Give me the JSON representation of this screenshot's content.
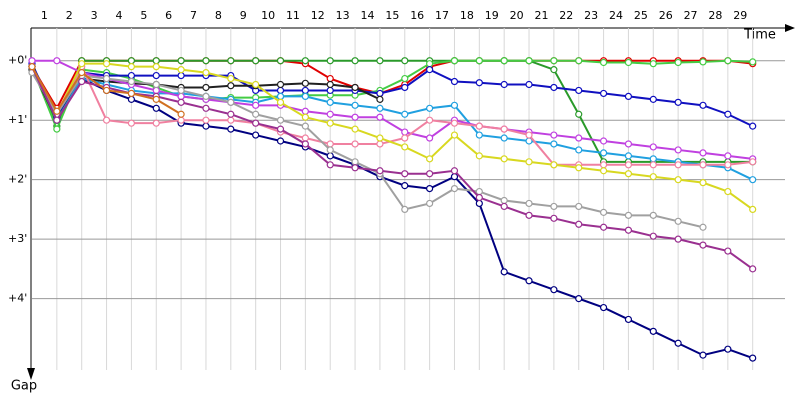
{
  "chart_data": {
    "type": "line",
    "x_label": "Time",
    "y_label": "Gap",
    "x": [
      0,
      1,
      2,
      3,
      4,
      5,
      6,
      7,
      8,
      9,
      10,
      11,
      12,
      13,
      14,
      15,
      16,
      17,
      18,
      19,
      20,
      21,
      22,
      23,
      24,
      25,
      26,
      27,
      28,
      29
    ],
    "xlim": [
      0,
      30.3
    ],
    "ylim": [
      -0.55,
      5.2
    ],
    "inverted_y": true,
    "grid": true,
    "xticks": [
      1,
      2,
      3,
      4,
      5,
      6,
      7,
      8,
      9,
      10,
      11,
      12,
      13,
      14,
      15,
      16,
      17,
      18,
      19,
      20,
      21,
      22,
      23,
      24,
      25,
      26,
      27,
      28,
      29
    ],
    "yticks": [
      {
        "value": 0,
        "label": "+0'"
      },
      {
        "value": 1,
        "label": "+1'"
      },
      {
        "value": 2,
        "label": "+2'"
      },
      {
        "value": 3,
        "label": "+3'"
      },
      {
        "value": 4,
        "label": "+4'"
      }
    ],
    "series": [
      {
        "color": "#e00000",
        "values": [
          0.1,
          0.8,
          0,
          0,
          0,
          0,
          0,
          0,
          0,
          0,
          0,
          0.05,
          0.3,
          0.45,
          0.55,
          0.4,
          0.1,
          0,
          0,
          0,
          0,
          0,
          0,
          0,
          0,
          0,
          0,
          0,
          0,
          0.05
        ]
      },
      {
        "color": "#2a9a2a",
        "values": [
          0.1,
          1.1,
          0,
          0,
          0,
          0,
          0,
          0,
          0,
          0,
          0,
          0,
          0,
          0,
          0,
          0,
          0,
          0,
          0,
          0,
          0,
          0.15,
          0.9,
          1.7,
          1.7,
          1.7,
          1.7,
          1.7,
          1.7,
          1.7
        ]
      },
      {
        "color": "#44cc44",
        "values": [
          0.1,
          1.15,
          0.15,
          0.2,
          0.3,
          0.45,
          0.6,
          0.65,
          0.62,
          0.62,
          0.6,
          0.58,
          0.58,
          0.58,
          0.5,
          0.3,
          0.05,
          0,
          0,
          0,
          0,
          0,
          0,
          0.03,
          0.03,
          0.05,
          0.03,
          0.02,
          0,
          0.02
        ]
      },
      {
        "color": "#1010c0",
        "values": [
          0.05,
          0.95,
          0.2,
          0.25,
          0.25,
          0.25,
          0.25,
          0.25,
          0.25,
          0.5,
          0.5,
          0.5,
          0.5,
          0.5,
          0.55,
          0.45,
          0.15,
          0.35,
          0.37,
          0.4,
          0.4,
          0.45,
          0.5,
          0.55,
          0.6,
          0.65,
          0.7,
          0.75,
          0.9,
          1.1
        ]
      },
      {
        "color": "#000080",
        "values": [
          0.1,
          0.9,
          0.3,
          0.5,
          0.65,
          0.8,
          1.05,
          1.1,
          1.15,
          1.25,
          1.35,
          1.45,
          1.6,
          1.75,
          1.95,
          2.1,
          2.15,
          1.95,
          2.4,
          3.55,
          3.7,
          3.85,
          4.0,
          4.15,
          4.35,
          4.55,
          4.75,
          4.95,
          4.85,
          5.0
        ]
      },
      {
        "color": "#202020",
        "values": [
          0.15,
          1.0,
          0.3,
          0.35,
          0.38,
          0.4,
          0.45,
          0.45,
          0.42,
          0.42,
          0.4,
          0.38,
          0.4,
          0.45,
          0.65,
          null,
          null,
          null,
          null,
          null,
          null,
          null,
          null,
          null,
          null,
          null,
          null,
          null,
          null,
          null
        ]
      },
      {
        "color": "#20a0e0",
        "values": [
          0.1,
          1.0,
          0.3,
          0.4,
          0.5,
          0.55,
          0.55,
          0.6,
          0.65,
          0.7,
          0.6,
          0.6,
          0.7,
          0.75,
          0.8,
          0.9,
          0.8,
          0.75,
          1.25,
          1.3,
          1.35,
          1.4,
          1.5,
          1.55,
          1.6,
          1.65,
          1.7,
          1.75,
          1.8,
          2.0
        ]
      },
      {
        "color": "#c040e0",
        "values": [
          0,
          0,
          0.2,
          0.3,
          0.4,
          0.5,
          0.6,
          0.65,
          0.7,
          0.75,
          0.75,
          0.85,
          0.9,
          0.95,
          0.95,
          1.2,
          1.3,
          1.0,
          1.1,
          1.15,
          1.2,
          1.25,
          1.3,
          1.35,
          1.4,
          1.45,
          1.5,
          1.55,
          1.6,
          1.65
        ]
      },
      {
        "color": "#f080a0",
        "values": [
          0.1,
          0.9,
          0.1,
          1.0,
          1.05,
          1.05,
          1.0,
          1.0,
          1.0,
          1.05,
          1.2,
          1.3,
          1.4,
          1.4,
          1.4,
          1.3,
          1.0,
          1.05,
          1.1,
          1.15,
          1.25,
          1.75,
          1.75,
          1.75,
          1.75,
          1.75,
          1.75,
          1.75,
          1.75,
          1.7
        ]
      },
      {
        "color": "#d8d820",
        "values": [
          0.1,
          0.9,
          0.05,
          0.05,
          0.1,
          0.1,
          0.15,
          0.2,
          0.3,
          0.4,
          0.7,
          0.95,
          1.05,
          1.15,
          1.3,
          1.45,
          1.65,
          1.25,
          1.6,
          1.65,
          1.7,
          1.75,
          1.8,
          1.85,
          1.9,
          1.95,
          2.0,
          2.05,
          2.2,
          2.5
        ]
      },
      {
        "color": "#a0a0a0",
        "values": [
          0.2,
          0.9,
          0.25,
          0.3,
          0.35,
          0.4,
          0.5,
          0.6,
          0.7,
          0.9,
          1.0,
          1.1,
          1.5,
          1.7,
          1.9,
          2.5,
          2.4,
          2.15,
          2.2,
          2.35,
          2.4,
          2.45,
          2.45,
          2.55,
          2.6,
          2.6,
          2.7,
          2.8,
          null,
          null
        ]
      },
      {
        "color": "#9a3090",
        "values": [
          0.1,
          1.0,
          0.35,
          0.45,
          0.55,
          0.6,
          0.7,
          0.8,
          0.9,
          1.05,
          1.15,
          1.4,
          1.75,
          1.8,
          1.85,
          1.9,
          1.9,
          1.85,
          2.3,
          2.45,
          2.6,
          2.65,
          2.75,
          2.8,
          2.85,
          2.95,
          3.0,
          3.1,
          3.2,
          3.5
        ]
      },
      {
        "color": "#d07020",
        "values": [
          0.1,
          0.85,
          0.2,
          0.5,
          0.55,
          0.65,
          0.9,
          null,
          null,
          null,
          null,
          null,
          null,
          null,
          null,
          null,
          null,
          null,
          null,
          null,
          null,
          null,
          null,
          null,
          null,
          null,
          null,
          null,
          null,
          null
        ]
      }
    ]
  }
}
